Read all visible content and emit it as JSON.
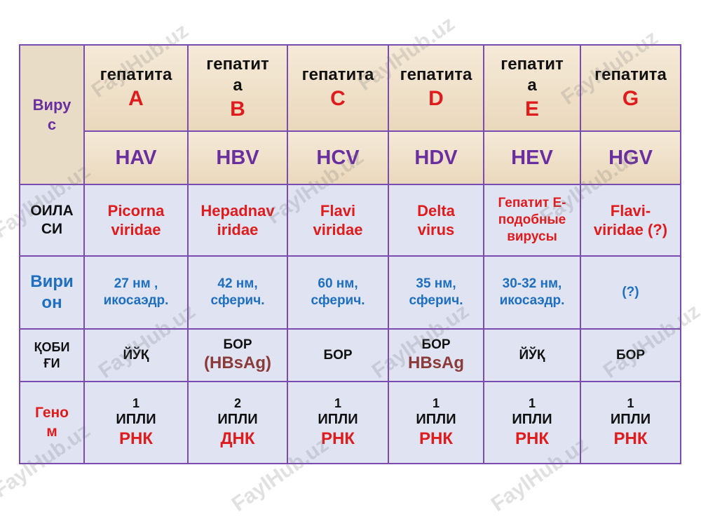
{
  "header": {
    "corner": [
      "Виру",
      "с"
    ],
    "columns": [
      {
        "title_lines": [
          "гепатита"
        ],
        "letter": "A",
        "abbr": "HAV"
      },
      {
        "title_lines": [
          "гепатит",
          "а"
        ],
        "letter": "B",
        "abbr": "HBV"
      },
      {
        "title_lines": [
          "гепатита"
        ],
        "letter": "C",
        "abbr": "HCV"
      },
      {
        "title_lines": [
          "гепатита"
        ],
        "letter": "D",
        "abbr": "HDV"
      },
      {
        "title_lines": [
          "гепатит",
          "а"
        ],
        "letter": "E",
        "abbr": "HEV"
      },
      {
        "title_lines": [
          "гепатита"
        ],
        "letter": "G",
        "abbr": "HGV"
      }
    ]
  },
  "rows": {
    "family": {
      "label": [
        "ОИЛА",
        "СИ"
      ],
      "cells": [
        [
          "Picorna",
          "viridae"
        ],
        [
          "Hepadnav",
          "iridae"
        ],
        [
          "Flavi",
          "viridae"
        ],
        [
          "Delta",
          "virus"
        ],
        [
          "Гепатит Е-",
          "подобные",
          "вирусы"
        ],
        [
          "Flavi-",
          "viridae (?)"
        ]
      ]
    },
    "virion": {
      "label": [
        "Вири",
        "он"
      ],
      "cells": [
        [
          "27 нм ,",
          "икосаэдр."
        ],
        [
          "42 нм,",
          "сферич."
        ],
        [
          "60 нм,",
          "сферич."
        ],
        [
          "35 нм,",
          "сферич."
        ],
        [
          "30-32 нм,",
          "икосаэдр."
        ],
        [
          "(?)"
        ]
      ]
    },
    "envelope": {
      "label": [
        "ҚОБИ",
        "ҒИ"
      ],
      "cells": [
        {
          "main": "ЙЎҚ",
          "antigen": ""
        },
        {
          "main": "БОР",
          "antigen": "(HBsAg)"
        },
        {
          "main": "БОР",
          "antigen": ""
        },
        {
          "main": "БОР",
          "antigen": "HBsAg"
        },
        {
          "main": "ЙЎҚ",
          "antigen": ""
        },
        {
          "main": "БОР",
          "antigen": ""
        }
      ]
    },
    "genome": {
      "label": [
        "Гено",
        "м"
      ],
      "cells": [
        {
          "count": "1",
          "strand": "ИПЛИ",
          "type": "РНК"
        },
        {
          "count": "2",
          "strand": "ИПЛИ",
          "type": "ДНК"
        },
        {
          "count": "1",
          "strand": "ИПЛИ",
          "type": "РНК"
        },
        {
          "count": "1",
          "strand": "ИПЛИ",
          "type": "РНК"
        },
        {
          "count": "1",
          "strand": "ИПЛИ",
          "type": "РНК"
        },
        {
          "count": "1",
          "strand": "ИПЛИ",
          "type": "РНК"
        }
      ]
    }
  },
  "watermark": "FaylHub.uz",
  "colors": {
    "border": "#7a4bb0",
    "header_bg": "#f0e4cf",
    "body_bg": "#dfe3f2",
    "red": "#e01b1b",
    "purple": "#6a2f9e",
    "blue": "#1e6fc0",
    "brown": "#8b3a3a"
  }
}
